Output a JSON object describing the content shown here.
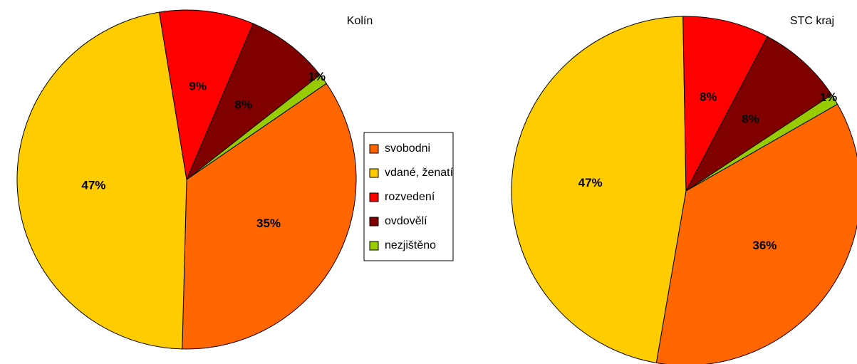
{
  "legend": {
    "categories": [
      "svobodni",
      "vdané, ženatí",
      "rozvedení",
      "ovdovělí",
      "nezjištěno"
    ],
    "colors": [
      "#ff6600",
      "#ffcc00",
      "#ff0000",
      "#800000",
      "#99cc00"
    ]
  },
  "chart_data": [
    {
      "type": "pie",
      "title": "Kolín",
      "values": [
        35,
        47,
        9,
        8,
        1
      ],
      "value_labels": [
        "35%",
        "47%",
        "9%",
        "8%",
        "1%"
      ]
    },
    {
      "type": "pie",
      "title": "STC kraj",
      "values": [
        36,
        47,
        8,
        8,
        1
      ],
      "value_labels": [
        "36%",
        "47%",
        "8%",
        "8%",
        "1%"
      ]
    }
  ]
}
